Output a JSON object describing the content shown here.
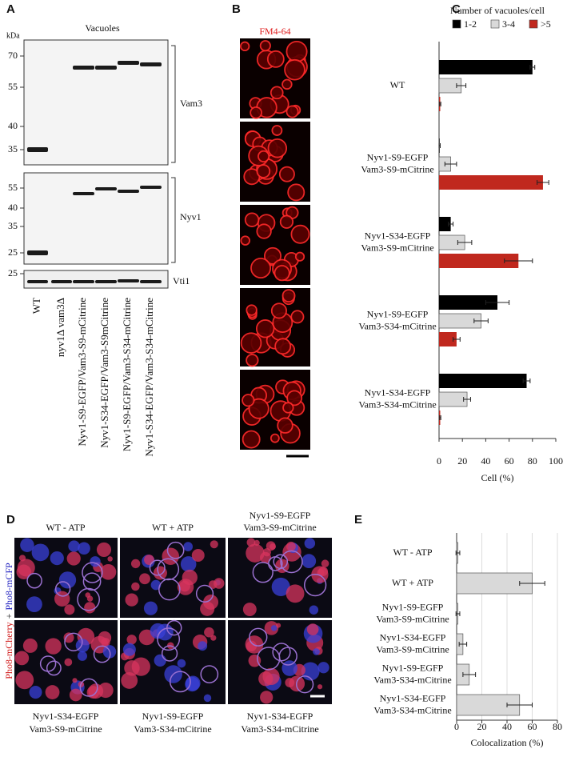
{
  "panels": {
    "a": "A",
    "b": "B",
    "c": "C",
    "d": "D",
    "e": "E"
  },
  "blot": {
    "title": "Vacuoles",
    "unit": "kDa",
    "markers_top": [
      "70",
      "55",
      "40",
      "35"
    ],
    "markers_middle": [
      "55",
      "40",
      "35",
      "25"
    ],
    "markers_bottom": [
      "25"
    ],
    "proteins": [
      "Vam3",
      "Nyv1",
      "Vti1"
    ],
    "lanes": [
      "WT",
      "nyv1Δ vam3Δ",
      "Nyv1-S9-EGFP/Vam3-S9-mCitrine",
      "Nyv1-S34-EGFP/Vam3-S9mCitrine",
      "Nyv1-S9-EGFP/Vam3-S34-mCitrine",
      "Nyv1-S34-EGFP/Vam3-S34-mCitrine"
    ]
  },
  "micrographs": {
    "stain": "FM4-64",
    "channel_red": "Pho8-mCherry",
    "channel_join": "+",
    "channel_blue": "Pho8-mCFP",
    "columns_top": [
      [
        "WT - ATP"
      ],
      [
        "WT + ATP"
      ],
      [
        "Nyv1-S9-EGFP",
        "Vam3-S9-mCitrine"
      ]
    ],
    "columns_bottom": [
      [
        "Nyv1-S34-EGFP",
        "Vam3-S9-mCitrine"
      ],
      [
        "Nyv1-S9-EGFP",
        "Vam3-S34-mCitrine"
      ],
      [
        "Nyv1-S34-EGFP",
        "Vam3-S34-mCitrine"
      ]
    ]
  },
  "chart_data": [
    {
      "type": "bar",
      "orientation": "horizontal",
      "legend_title": "Number of vacuoles/cell",
      "xlabel": "Cell (%)",
      "categories": [
        [
          "WT"
        ],
        [
          "Nyv1-S9-EGFP",
          "Vam3-S9-mCitrine"
        ],
        [
          "Nyv1-S34-EGFP",
          "Vam3-S9-mCitrine"
        ],
        [
          "Nyv1-S9-EGFP",
          "Vam3-S34-mCitrine"
        ],
        [
          "Nyv1-S34-EGFP",
          "Vam3-S34-mCitrine"
        ]
      ],
      "series": [
        {
          "name": "1-2",
          "color": "#000000",
          "values": [
            80,
            0.5,
            10,
            50,
            75
          ],
          "errors": [
            2,
            0.5,
            2,
            10,
            3
          ]
        },
        {
          "name": "3-4",
          "color": "#d9d9d9",
          "values": [
            19,
            10,
            22,
            36,
            24
          ],
          "errors": [
            4,
            5,
            6,
            6,
            3
          ]
        },
        {
          "name": ">5",
          "color": "#c0281e",
          "values": [
            1,
            89,
            68,
            15,
            1
          ],
          "errors": [
            0.5,
            5,
            12,
            3,
            0.5
          ]
        }
      ],
      "xlim": [
        0,
        100
      ],
      "xticks": [
        0,
        20,
        40,
        60,
        80,
        100
      ],
      "legend": "top",
      "grid": false
    },
    {
      "type": "bar",
      "orientation": "horizontal",
      "xlabel": "Colocalization (%)",
      "categories": [
        [
          "WT - ATP"
        ],
        [
          "WT + ATP"
        ],
        [
          "Nyv1-S9-EGFP",
          "Vam3-S9-mCitrine"
        ],
        [
          "Nyv1-S34-EGFP",
          "Vam3-S9-mCitrine"
        ],
        [
          "Nyv1-S9-EGFP",
          "Vam3-S34-mCitrine"
        ],
        [
          "Nyv1-S34-EGFP",
          "Vam3-S34-mCitrine"
        ]
      ],
      "series": [
        {
          "color": "#d9d9d9",
          "values": [
            1,
            60,
            1,
            5,
            10,
            50
          ],
          "errors": [
            1.5,
            10,
            1.5,
            3,
            5,
            10
          ]
        }
      ],
      "xlim": [
        0,
        80
      ],
      "xticks": [
        0,
        20,
        40,
        60,
        80
      ],
      "grid": true
    }
  ]
}
